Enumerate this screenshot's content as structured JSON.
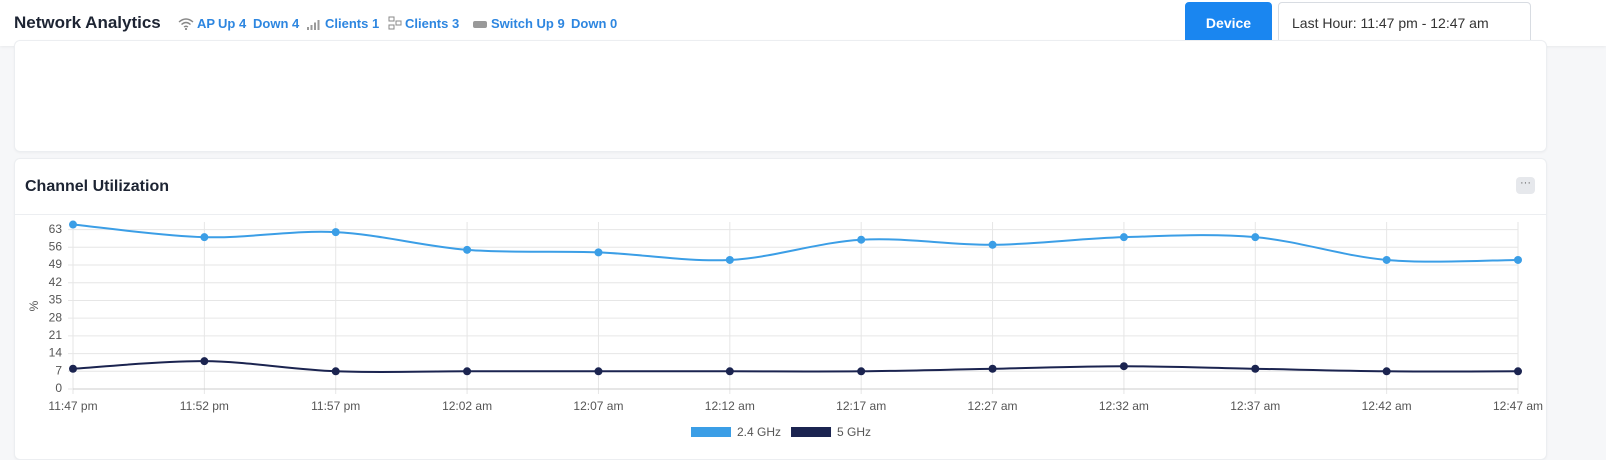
{
  "header": {
    "title": "Network Analytics",
    "ap": "AP",
    "ap_up": "Up 4",
    "ap_down": "Down 4",
    "clients_wireless": "Clients 1",
    "clients_wired": "Clients 3",
    "switch_up": "Switch Up 9",
    "switch_down": "Down 0",
    "device_button": "Device",
    "time_range": "Last Hour: 11:47 pm - 12:47 am"
  },
  "card": {
    "title": "Channel Utilization"
  },
  "chart_data": {
    "type": "line",
    "y_label": "%",
    "categories": [
      "11:47 pm",
      "11:52 pm",
      "11:57 pm",
      "12:02 am",
      "12:07 am",
      "12:12 am",
      "12:17 am",
      "12:27 am",
      "12:32 am",
      "12:37 am",
      "12:42 am",
      "12:47 am"
    ],
    "series": [
      {
        "name": "2.4 GHz",
        "color": "#3b9ee6",
        "values": [
          65,
          60,
          62,
          55,
          54,
          51,
          59,
          57,
          60,
          60,
          51,
          51
        ]
      },
      {
        "name": "5 GHz",
        "color": "#1b2450",
        "values": [
          8,
          11,
          7,
          7,
          7,
          7,
          7,
          8,
          9,
          8,
          7,
          7
        ]
      }
    ],
    "ylim": [
      0,
      66
    ],
    "yticks": [
      0,
      7,
      14,
      21,
      28,
      35,
      42,
      49,
      56,
      63
    ],
    "grid": true,
    "legend": "bottom"
  }
}
